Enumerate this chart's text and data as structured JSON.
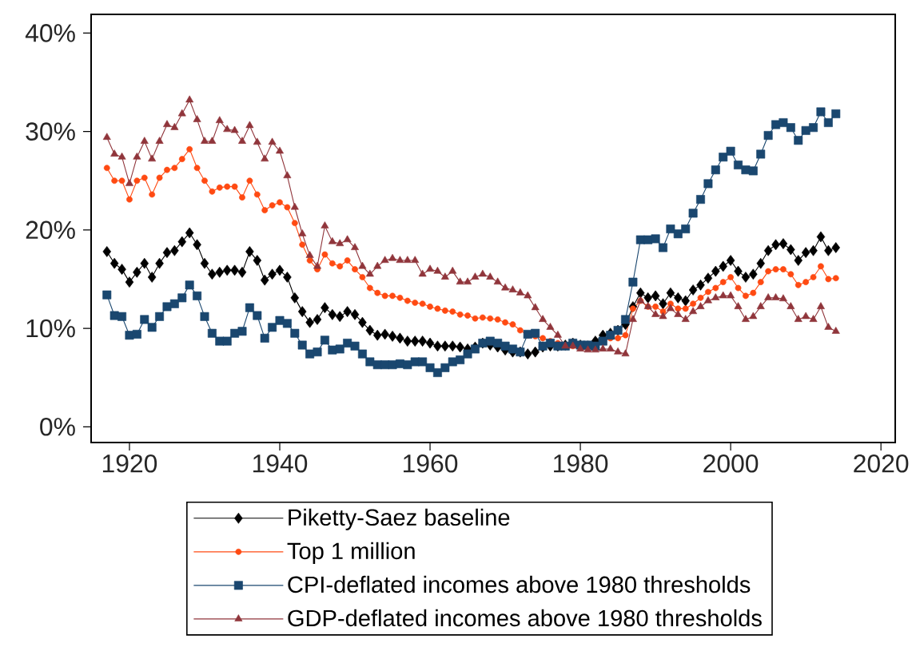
{
  "chart_data": {
    "type": "line",
    "x": [
      1917,
      1918,
      1919,
      1920,
      1921,
      1922,
      1923,
      1924,
      1925,
      1926,
      1927,
      1928,
      1929,
      1930,
      1931,
      1932,
      1933,
      1934,
      1935,
      1936,
      1937,
      1938,
      1939,
      1940,
      1941,
      1942,
      1943,
      1944,
      1945,
      1946,
      1947,
      1948,
      1949,
      1950,
      1951,
      1952,
      1953,
      1954,
      1955,
      1956,
      1957,
      1958,
      1959,
      1960,
      1961,
      1962,
      1963,
      1964,
      1965,
      1966,
      1967,
      1968,
      1969,
      1970,
      1971,
      1972,
      1973,
      1974,
      1975,
      1976,
      1977,
      1978,
      1979,
      1980,
      1981,
      1982,
      1983,
      1984,
      1985,
      1986,
      1987,
      1988,
      1989,
      1990,
      1991,
      1992,
      1993,
      1994,
      1995,
      1996,
      1997,
      1998,
      1999,
      2000,
      2001,
      2002,
      2003,
      2004,
      2005,
      2006,
      2007,
      2008,
      2009,
      2010,
      2011,
      2012,
      2013,
      2014
    ],
    "series": [
      {
        "name": "Piketty-Saez baseline",
        "color": "#000000",
        "marker": "diamond",
        "values": [
          17.8,
          16.6,
          16.0,
          14.7,
          15.7,
          16.6,
          15.2,
          16.6,
          17.7,
          17.9,
          18.8,
          19.7,
          18.5,
          16.6,
          15.5,
          15.7,
          15.9,
          15.9,
          15.7,
          17.8,
          16.9,
          14.9,
          15.5,
          15.9,
          15.2,
          13.1,
          11.7,
          10.6,
          10.9,
          12.1,
          11.4,
          11.2,
          11.7,
          11.4,
          10.6,
          9.8,
          9.3,
          9.4,
          9.2,
          9.0,
          8.7,
          8.7,
          8.7,
          8.5,
          8.2,
          8.2,
          8.2,
          8.1,
          7.9,
          8.1,
          8.5,
          8.3,
          8.1,
          7.8,
          7.6,
          7.6,
          7.4,
          7.6,
          8.1,
          8.2,
          8.2,
          8.3,
          8.5,
          8.3,
          8.2,
          8.7,
          9.3,
          9.5,
          9.8,
          10.4,
          12.2,
          13.6,
          13.1,
          13.3,
          12.5,
          13.6,
          13.1,
          12.8,
          13.9,
          14.4,
          15.1,
          15.8,
          16.3,
          16.9,
          15.8,
          15.2,
          15.5,
          16.6,
          17.9,
          18.5,
          18.6,
          18.0,
          16.9,
          17.7,
          17.9,
          19.3,
          17.9,
          18.2
        ]
      },
      {
        "name": "Top 1 million",
        "color": "#ff4a12",
        "marker": "circle",
        "values": [
          26.3,
          25.0,
          25.0,
          23.1,
          25.0,
          25.3,
          23.6,
          25.3,
          26.1,
          26.3,
          27.2,
          28.2,
          26.3,
          25.0,
          23.9,
          24.3,
          24.4,
          24.4,
          23.3,
          25.0,
          23.6,
          22.0,
          22.5,
          22.8,
          22.3,
          20.7,
          18.5,
          16.9,
          16.0,
          17.5,
          16.6,
          16.3,
          16.9,
          16.0,
          15.2,
          14.1,
          13.6,
          13.3,
          13.3,
          13.1,
          12.8,
          12.6,
          12.5,
          12.2,
          12.0,
          11.8,
          11.7,
          11.4,
          11.3,
          11.0,
          11.1,
          11.0,
          10.9,
          10.6,
          10.4,
          9.8,
          9.3,
          9.2,
          9.0,
          8.7,
          8.5,
          8.3,
          8.2,
          8.3,
          8.3,
          8.3,
          8.7,
          9.0,
          9.0,
          9.3,
          12.0,
          12.8,
          12.2,
          12.2,
          11.7,
          12.5,
          12.0,
          12.0,
          12.5,
          13.1,
          13.7,
          14.1,
          14.7,
          15.2,
          14.1,
          13.3,
          13.6,
          14.7,
          15.8,
          16.0,
          16.0,
          15.5,
          14.4,
          14.7,
          15.2,
          16.3,
          15.0,
          15.1
        ]
      },
      {
        "name": "CPI-deflated incomes above 1980 thresholds",
        "color": "#1a476f",
        "marker": "square",
        "values": [
          13.4,
          11.3,
          11.2,
          9.3,
          9.4,
          10.9,
          10.1,
          11.2,
          12.2,
          12.5,
          13.1,
          14.4,
          13.3,
          11.2,
          9.5,
          8.7,
          8.7,
          9.5,
          9.7,
          12.1,
          11.3,
          9.0,
          10.1,
          10.8,
          10.5,
          9.5,
          8.3,
          7.4,
          7.6,
          8.8,
          7.8,
          7.9,
          8.5,
          8.2,
          7.4,
          6.6,
          6.3,
          6.3,
          6.3,
          6.4,
          6.3,
          6.6,
          6.6,
          6.0,
          5.5,
          6.0,
          6.6,
          6.8,
          7.4,
          7.9,
          8.5,
          8.7,
          8.5,
          8.2,
          7.9,
          7.6,
          9.4,
          9.5,
          8.2,
          8.5,
          8.2,
          8.2,
          8.5,
          8.3,
          8.3,
          8.2,
          8.7,
          9.3,
          9.8,
          10.9,
          14.7,
          19.0,
          19.0,
          19.1,
          18.2,
          20.1,
          19.6,
          20.1,
          21.7,
          23.1,
          24.7,
          26.1,
          27.4,
          28.0,
          26.6,
          26.1,
          26.0,
          27.7,
          29.6,
          30.7,
          30.9,
          30.4,
          29.1,
          30.1,
          30.4,
          32.0,
          30.9,
          31.8
        ]
      },
      {
        "name": "GDP-deflated incomes above 1980 thresholds",
        "color": "#90353b",
        "marker": "triangle",
        "values": [
          29.4,
          27.7,
          27.4,
          24.7,
          27.4,
          29.0,
          27.2,
          29.0,
          30.7,
          30.4,
          31.8,
          33.2,
          31.2,
          29.0,
          29.0,
          31.1,
          30.2,
          30.1,
          29.0,
          30.6,
          28.9,
          27.2,
          28.9,
          28.0,
          25.5,
          22.3,
          19.6,
          17.4,
          16.3,
          20.4,
          18.8,
          18.6,
          19.0,
          18.2,
          16.3,
          15.5,
          16.3,
          16.9,
          17.1,
          16.9,
          16.9,
          16.9,
          15.5,
          16.0,
          15.8,
          15.2,
          15.8,
          14.7,
          14.7,
          15.2,
          15.5,
          15.2,
          14.7,
          14.1,
          13.9,
          13.6,
          13.3,
          12.1,
          10.9,
          10.1,
          9.3,
          8.2,
          8.2,
          7.9,
          7.8,
          7.8,
          7.9,
          7.9,
          7.6,
          7.4,
          10.9,
          12.8,
          12.2,
          11.4,
          11.2,
          12.0,
          11.4,
          10.9,
          11.7,
          12.2,
          12.8,
          13.1,
          13.3,
          13.3,
          12.2,
          10.9,
          11.2,
          12.2,
          13.1,
          13.1,
          13.0,
          12.2,
          10.9,
          11.2,
          10.9,
          12.2,
          10.1,
          9.7
        ]
      }
    ],
    "xlim": [
      1914.9,
      2021.9
    ],
    "xticks": [
      1920,
      1940,
      1960,
      1980,
      2000,
      2020
    ],
    "ylim": [
      -1.6,
      41.9
    ],
    "yticks": [
      {
        "value": 0,
        "label": "0%"
      },
      {
        "value": 10,
        "label": "10%"
      },
      {
        "value": 20,
        "label": "20%"
      },
      {
        "value": 30,
        "label": "30%"
      },
      {
        "value": 40,
        "label": "40%"
      }
    ],
    "legend": "bottom"
  }
}
